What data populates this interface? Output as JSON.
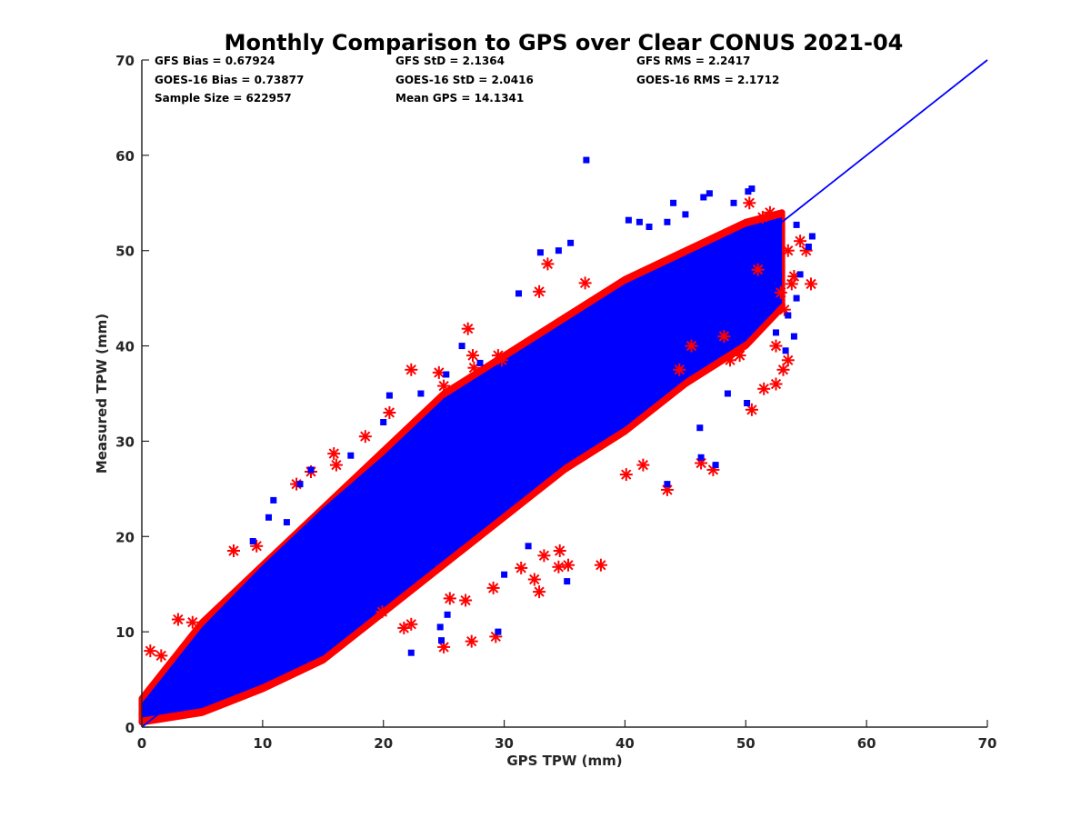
{
  "chart_data": {
    "type": "scatter",
    "title": "Monthly Comparison to GPS over Clear CONUS 2021-04",
    "xlabel": "GPS TPW (mm)",
    "ylabel": "Measured TPW (mm)",
    "xlim": [
      0,
      70
    ],
    "ylim": [
      0,
      70
    ],
    "xticks": [
      0,
      10,
      20,
      30,
      40,
      50,
      60,
      70
    ],
    "yticks": [
      0,
      10,
      20,
      30,
      40,
      50,
      60,
      70
    ],
    "grid": false,
    "stats": {
      "gfs_bias": "GFS Bias = 0.67924",
      "goes_bias": "GOES-16 Bias = 0.73877",
      "sample_size": "Sample Size = 622957",
      "gfs_std": "GFS StD = 2.1364",
      "goes_std": "GOES-16 StD = 2.0416",
      "mean_gps": "Mean GPS = 14.1341",
      "gfs_rms": "GFS RMS = 2.2417",
      "goes_rms": "GOES-16 RMS = 2.1712"
    },
    "reference_line": {
      "name": "1:1 line",
      "color": "#0000ff",
      "x": [
        0,
        70
      ],
      "y": [
        0,
        70
      ]
    },
    "series": [
      {
        "name": "GFS",
        "marker": "asterisk",
        "color": "#ff0000",
        "cloud_upper": [
          [
            0,
            3
          ],
          [
            5,
            11
          ],
          [
            10,
            17
          ],
          [
            15,
            23
          ],
          [
            20,
            29
          ],
          [
            25,
            35
          ],
          [
            30,
            39
          ],
          [
            35,
            43
          ],
          [
            40,
            47
          ],
          [
            45,
            50
          ],
          [
            50,
            53
          ],
          [
            53,
            54
          ]
        ],
        "cloud_lower": [
          [
            0,
            0.5
          ],
          [
            5,
            1.5
          ],
          [
            10,
            4
          ],
          [
            15,
            7
          ],
          [
            20,
            12
          ],
          [
            25,
            17
          ],
          [
            30,
            22
          ],
          [
            35,
            27
          ],
          [
            40,
            31
          ],
          [
            45,
            36
          ],
          [
            50,
            40
          ],
          [
            53,
            44
          ]
        ],
        "points": [
          [
            0.7,
            8
          ],
          [
            1.6,
            7.5
          ],
          [
            3,
            11.3
          ],
          [
            4.2,
            11
          ],
          [
            7.6,
            18.5
          ],
          [
            9.5,
            19
          ],
          [
            12.8,
            25.5
          ],
          [
            14,
            26.8
          ],
          [
            15.9,
            28.7
          ],
          [
            16.1,
            27.5
          ],
          [
            18.5,
            30.5
          ],
          [
            20.5,
            33
          ],
          [
            22.3,
            37.5
          ],
          [
            24.6,
            37.2
          ],
          [
            25,
            35.8
          ],
          [
            27.4,
            39
          ],
          [
            27,
            41.8
          ],
          [
            27.5,
            37.7
          ],
          [
            29.5,
            39
          ],
          [
            29.8,
            38.5
          ],
          [
            32.9,
            45.7
          ],
          [
            33.6,
            48.6
          ],
          [
            36.7,
            46.6
          ],
          [
            38,
            17
          ],
          [
            35.3,
            17
          ],
          [
            34.5,
            16.8
          ],
          [
            32.5,
            15.5
          ],
          [
            34.6,
            18.5
          ],
          [
            33.3,
            18
          ],
          [
            31.4,
            16.7
          ],
          [
            29.3,
            9.5
          ],
          [
            27.3,
            9
          ],
          [
            25,
            8.4
          ],
          [
            22.3,
            10.8
          ],
          [
            21.7,
            10.4
          ],
          [
            19.9,
            12.1
          ],
          [
            25.5,
            13.5
          ],
          [
            26.8,
            13.3
          ],
          [
            29.1,
            14.6
          ],
          [
            32.9,
            14.2
          ],
          [
            40.1,
            26.5
          ],
          [
            41.5,
            27.5
          ],
          [
            43.5,
            24.9
          ],
          [
            46.3,
            27.7
          ],
          [
            47.3,
            27
          ],
          [
            50.5,
            33.3
          ],
          [
            51.5,
            35.5
          ],
          [
            52.5,
            36
          ],
          [
            53.1,
            37.5
          ],
          [
            53.5,
            38.5
          ],
          [
            52.5,
            40
          ],
          [
            53.2,
            43.8
          ],
          [
            52.9,
            45.6
          ],
          [
            53.8,
            46.5
          ],
          [
            54,
            47.3
          ],
          [
            55.4,
            46.5
          ],
          [
            53.5,
            50
          ],
          [
            54.5,
            51
          ],
          [
            55,
            50
          ],
          [
            51,
            48
          ],
          [
            50.3,
            55
          ],
          [
            51.4,
            53.5
          ],
          [
            52,
            54
          ],
          [
            48.2,
            41
          ],
          [
            48.7,
            38.5
          ],
          [
            49.5,
            39
          ],
          [
            45.5,
            40
          ],
          [
            44.5,
            37.5
          ]
        ]
      },
      {
        "name": "GOES-16",
        "marker": "square",
        "color": "#0000ff",
        "cloud_upper": [
          [
            0,
            2.5
          ],
          [
            5,
            10.5
          ],
          [
            10,
            17
          ],
          [
            15,
            23
          ],
          [
            20,
            28.5
          ],
          [
            25,
            34.5
          ],
          [
            30,
            38.5
          ],
          [
            35,
            42.5
          ],
          [
            40,
            46.5
          ],
          [
            45,
            49.5
          ],
          [
            50,
            52.5
          ],
          [
            53,
            53.5
          ]
        ],
        "cloud_lower": [
          [
            0,
            1
          ],
          [
            5,
            2
          ],
          [
            10,
            4.5
          ],
          [
            15,
            7.5
          ],
          [
            20,
            12.5
          ],
          [
            25,
            17.5
          ],
          [
            30,
            22.5
          ],
          [
            35,
            27.5
          ],
          [
            40,
            31.5
          ],
          [
            45,
            36.5
          ],
          [
            50,
            40.5
          ],
          [
            53,
            44.5
          ]
        ],
        "points": [
          [
            36.8,
            59.5
          ],
          [
            35.5,
            50.8
          ],
          [
            34.5,
            50
          ],
          [
            33,
            49.8
          ],
          [
            31.2,
            45.5
          ],
          [
            40.3,
            53.2
          ],
          [
            41.2,
            53
          ],
          [
            42,
            52.5
          ],
          [
            43.5,
            53
          ],
          [
            45,
            53.8
          ],
          [
            47,
            56
          ],
          [
            49,
            55
          ],
          [
            50.2,
            56.2
          ],
          [
            50.5,
            56.5
          ],
          [
            46.5,
            55.6
          ],
          [
            44,
            55
          ],
          [
            54.2,
            52.7
          ],
          [
            55.5,
            51.5
          ],
          [
            55.2,
            50.4
          ],
          [
            54.5,
            47.5
          ],
          [
            54.2,
            45
          ],
          [
            53.5,
            43.2
          ],
          [
            54,
            41
          ],
          [
            52.5,
            41.4
          ],
          [
            53.3,
            39.5
          ],
          [
            50.1,
            34
          ],
          [
            48.5,
            35
          ],
          [
            46.2,
            31.4
          ],
          [
            46.3,
            28.3
          ],
          [
            47.5,
            27.5
          ],
          [
            43.5,
            25.5
          ],
          [
            35.2,
            15.3
          ],
          [
            32,
            19
          ],
          [
            30,
            16
          ],
          [
            29.5,
            10
          ],
          [
            25.3,
            11.8
          ],
          [
            24.7,
            10.5
          ],
          [
            24.8,
            9.1
          ],
          [
            22.3,
            7.8
          ],
          [
            21.6,
            16.8
          ],
          [
            19.5,
            15.5
          ],
          [
            17.5,
            16
          ],
          [
            16.5,
            14
          ],
          [
            9.2,
            19.5
          ],
          [
            10.9,
            23.8
          ],
          [
            13.1,
            25.5
          ],
          [
            14,
            27
          ],
          [
            17.3,
            28.5
          ],
          [
            20,
            32
          ],
          [
            23.1,
            35
          ],
          [
            25.2,
            37
          ],
          [
            26.5,
            40
          ],
          [
            28,
            38.2
          ],
          [
            20.5,
            34.8
          ],
          [
            13,
            19
          ],
          [
            12,
            21.5
          ],
          [
            10.5,
            22
          ]
        ]
      }
    ]
  }
}
